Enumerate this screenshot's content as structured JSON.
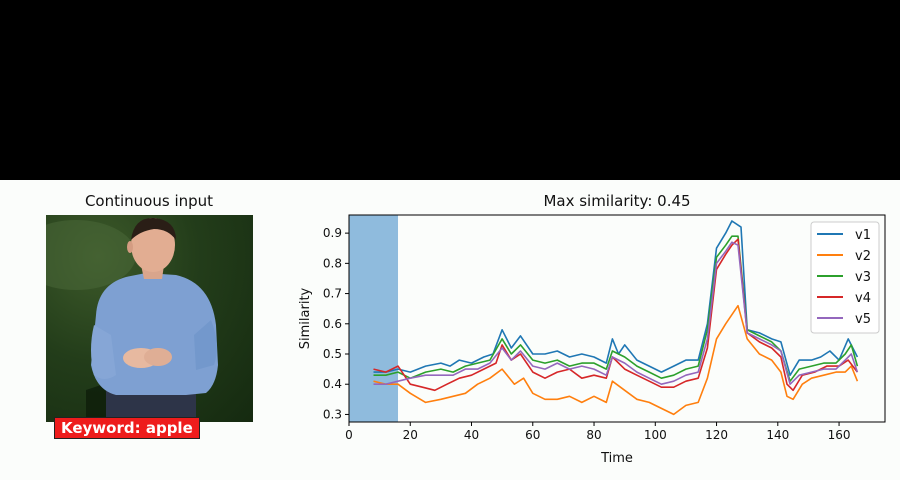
{
  "left_panel": {
    "title": "Continuous input",
    "keyword_badge": "Keyword: apple"
  },
  "colors": {
    "background": "#fbfdfb",
    "top_band": "#000000",
    "badge_bg": "#ee1c1c",
    "span_fill": "#8fbbdd"
  },
  "chart_data": {
    "type": "line",
    "title": "Max similarity: 0.45",
    "xlabel": "Time",
    "ylabel": "Similarity",
    "xlim": [
      0,
      175
    ],
    "ylim": [
      0.275,
      0.96
    ],
    "xticks": [
      0,
      20,
      40,
      60,
      80,
      100,
      120,
      140,
      160
    ],
    "yticks": [
      0.3,
      0.4,
      0.5,
      0.6,
      0.7,
      0.8,
      0.9
    ],
    "legend_position": "top-right",
    "grid": false,
    "shaded_span": [
      0,
      16
    ],
    "series": [
      {
        "name": "v1",
        "color": "#1f77b4",
        "points": [
          [
            8,
            0.44
          ],
          [
            12,
            0.44
          ],
          [
            16,
            0.45
          ],
          [
            20,
            0.44
          ],
          [
            25,
            0.46
          ],
          [
            30,
            0.47
          ],
          [
            33,
            0.46
          ],
          [
            36,
            0.48
          ],
          [
            40,
            0.47
          ],
          [
            44,
            0.49
          ],
          [
            47,
            0.5
          ],
          [
            50,
            0.58
          ],
          [
            53,
            0.52
          ],
          [
            56,
            0.56
          ],
          [
            60,
            0.5
          ],
          [
            64,
            0.5
          ],
          [
            68,
            0.51
          ],
          [
            72,
            0.49
          ],
          [
            76,
            0.5
          ],
          [
            80,
            0.49
          ],
          [
            84,
            0.47
          ],
          [
            86,
            0.55
          ],
          [
            88,
            0.5
          ],
          [
            90,
            0.53
          ],
          [
            94,
            0.48
          ],
          [
            98,
            0.46
          ],
          [
            102,
            0.44
          ],
          [
            106,
            0.46
          ],
          [
            110,
            0.48
          ],
          [
            114,
            0.48
          ],
          [
            117,
            0.6
          ],
          [
            120,
            0.85
          ],
          [
            123,
            0.9
          ],
          [
            125,
            0.94
          ],
          [
            128,
            0.92
          ],
          [
            130,
            0.58
          ],
          [
            134,
            0.57
          ],
          [
            138,
            0.55
          ],
          [
            141,
            0.54
          ],
          [
            144,
            0.43
          ],
          [
            147,
            0.48
          ],
          [
            151,
            0.48
          ],
          [
            154,
            0.49
          ],
          [
            157,
            0.51
          ],
          [
            160,
            0.48
          ],
          [
            163,
            0.55
          ],
          [
            166,
            0.49
          ]
        ]
      },
      {
        "name": "v2",
        "color": "#ff7f0e",
        "points": [
          [
            8,
            0.41
          ],
          [
            12,
            0.4
          ],
          [
            16,
            0.4
          ],
          [
            20,
            0.37
          ],
          [
            25,
            0.34
          ],
          [
            30,
            0.35
          ],
          [
            34,
            0.36
          ],
          [
            38,
            0.37
          ],
          [
            42,
            0.4
          ],
          [
            46,
            0.42
          ],
          [
            50,
            0.45
          ],
          [
            54,
            0.4
          ],
          [
            57,
            0.42
          ],
          [
            60,
            0.37
          ],
          [
            64,
            0.35
          ],
          [
            68,
            0.35
          ],
          [
            72,
            0.36
          ],
          [
            76,
            0.34
          ],
          [
            80,
            0.36
          ],
          [
            84,
            0.34
          ],
          [
            86,
            0.41
          ],
          [
            90,
            0.38
          ],
          [
            94,
            0.35
          ],
          [
            98,
            0.34
          ],
          [
            102,
            0.32
          ],
          [
            106,
            0.3
          ],
          [
            110,
            0.33
          ],
          [
            114,
            0.34
          ],
          [
            117,
            0.42
          ],
          [
            120,
            0.55
          ],
          [
            123,
            0.6
          ],
          [
            127,
            0.66
          ],
          [
            130,
            0.55
          ],
          [
            134,
            0.5
          ],
          [
            138,
            0.48
          ],
          [
            141,
            0.44
          ],
          [
            143,
            0.36
          ],
          [
            145,
            0.35
          ],
          [
            148,
            0.4
          ],
          [
            151,
            0.42
          ],
          [
            155,
            0.43
          ],
          [
            159,
            0.44
          ],
          [
            162,
            0.44
          ],
          [
            164,
            0.46
          ],
          [
            166,
            0.41
          ]
        ]
      },
      {
        "name": "v3",
        "color": "#2ca02c",
        "points": [
          [
            8,
            0.43
          ],
          [
            12,
            0.43
          ],
          [
            16,
            0.44
          ],
          [
            20,
            0.42
          ],
          [
            25,
            0.44
          ],
          [
            30,
            0.45
          ],
          [
            34,
            0.44
          ],
          [
            38,
            0.46
          ],
          [
            42,
            0.47
          ],
          [
            46,
            0.48
          ],
          [
            50,
            0.55
          ],
          [
            53,
            0.5
          ],
          [
            56,
            0.53
          ],
          [
            60,
            0.48
          ],
          [
            64,
            0.47
          ],
          [
            68,
            0.48
          ],
          [
            72,
            0.46
          ],
          [
            76,
            0.47
          ],
          [
            80,
            0.47
          ],
          [
            84,
            0.45
          ],
          [
            86,
            0.51
          ],
          [
            90,
            0.49
          ],
          [
            94,
            0.46
          ],
          [
            98,
            0.44
          ],
          [
            102,
            0.42
          ],
          [
            106,
            0.43
          ],
          [
            110,
            0.45
          ],
          [
            114,
            0.46
          ],
          [
            117,
            0.58
          ],
          [
            120,
            0.82
          ],
          [
            123,
            0.86
          ],
          [
            125,
            0.89
          ],
          [
            127,
            0.89
          ],
          [
            130,
            0.58
          ],
          [
            134,
            0.56
          ],
          [
            138,
            0.54
          ],
          [
            141,
            0.51
          ],
          [
            144,
            0.41
          ],
          [
            147,
            0.45
          ],
          [
            151,
            0.46
          ],
          [
            155,
            0.47
          ],
          [
            159,
            0.47
          ],
          [
            162,
            0.5
          ],
          [
            164,
            0.53
          ],
          [
            166,
            0.46
          ]
        ]
      },
      {
        "name": "v4",
        "color": "#d62728",
        "points": [
          [
            8,
            0.45
          ],
          [
            12,
            0.44
          ],
          [
            16,
            0.46
          ],
          [
            20,
            0.4
          ],
          [
            24,
            0.39
          ],
          [
            28,
            0.38
          ],
          [
            32,
            0.4
          ],
          [
            36,
            0.42
          ],
          [
            40,
            0.43
          ],
          [
            44,
            0.45
          ],
          [
            48,
            0.47
          ],
          [
            50,
            0.53
          ],
          [
            53,
            0.48
          ],
          [
            56,
            0.5
          ],
          [
            60,
            0.44
          ],
          [
            64,
            0.42
          ],
          [
            68,
            0.44
          ],
          [
            72,
            0.45
          ],
          [
            76,
            0.42
          ],
          [
            80,
            0.43
          ],
          [
            84,
            0.42
          ],
          [
            86,
            0.49
          ],
          [
            90,
            0.45
          ],
          [
            94,
            0.43
          ],
          [
            98,
            0.41
          ],
          [
            102,
            0.39
          ],
          [
            106,
            0.39
          ],
          [
            110,
            0.41
          ],
          [
            114,
            0.42
          ],
          [
            117,
            0.52
          ],
          [
            120,
            0.78
          ],
          [
            123,
            0.83
          ],
          [
            125,
            0.86
          ],
          [
            127,
            0.88
          ],
          [
            130,
            0.57
          ],
          [
            134,
            0.54
          ],
          [
            138,
            0.52
          ],
          [
            141,
            0.49
          ],
          [
            143,
            0.4
          ],
          [
            145,
            0.38
          ],
          [
            148,
            0.43
          ],
          [
            152,
            0.44
          ],
          [
            156,
            0.46
          ],
          [
            160,
            0.46
          ],
          [
            163,
            0.48
          ],
          [
            166,
            0.44
          ]
        ]
      },
      {
        "name": "v5",
        "color": "#9467bd",
        "points": [
          [
            8,
            0.4
          ],
          [
            12,
            0.4
          ],
          [
            16,
            0.41
          ],
          [
            20,
            0.42
          ],
          [
            25,
            0.43
          ],
          [
            30,
            0.43
          ],
          [
            34,
            0.43
          ],
          [
            38,
            0.45
          ],
          [
            42,
            0.45
          ],
          [
            46,
            0.47
          ],
          [
            50,
            0.52
          ],
          [
            53,
            0.48
          ],
          [
            56,
            0.51
          ],
          [
            60,
            0.46
          ],
          [
            64,
            0.45
          ],
          [
            68,
            0.47
          ],
          [
            72,
            0.45
          ],
          [
            76,
            0.46
          ],
          [
            80,
            0.45
          ],
          [
            84,
            0.43
          ],
          [
            86,
            0.49
          ],
          [
            90,
            0.47
          ],
          [
            94,
            0.44
          ],
          [
            98,
            0.42
          ],
          [
            102,
            0.4
          ],
          [
            106,
            0.41
          ],
          [
            110,
            0.43
          ],
          [
            114,
            0.44
          ],
          [
            117,
            0.55
          ],
          [
            120,
            0.8
          ],
          [
            123,
            0.84
          ],
          [
            125,
            0.87
          ],
          [
            127,
            0.86
          ],
          [
            130,
            0.57
          ],
          [
            134,
            0.55
          ],
          [
            138,
            0.53
          ],
          [
            141,
            0.51
          ],
          [
            144,
            0.4
          ],
          [
            147,
            0.43
          ],
          [
            151,
            0.44
          ],
          [
            155,
            0.45
          ],
          [
            159,
            0.45
          ],
          [
            162,
            0.48
          ],
          [
            164,
            0.5
          ],
          [
            166,
            0.44
          ]
        ]
      }
    ]
  }
}
